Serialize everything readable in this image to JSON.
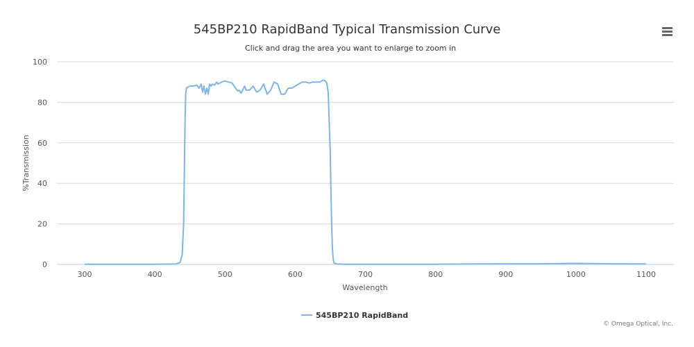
{
  "chart_data": {
    "type": "line",
    "title": "545BP210 RapidBand Typical Transmission Curve",
    "subtitle": "Click and drag the area you want to enlarge to zoom in",
    "xlabel": "Wavelength",
    "ylabel": "%Transmission",
    "xlim": [
      300,
      1100
    ],
    "ylim": [
      0,
      100
    ],
    "xticks": [
      300,
      400,
      500,
      600,
      700,
      800,
      900,
      1000,
      1100
    ],
    "yticks": [
      0,
      20,
      40,
      60,
      80,
      100
    ],
    "grid": true,
    "legend_position": "bottom-center",
    "series": [
      {
        "name": "545BP210 RapidBand",
        "color": "#7cb5ec",
        "x": [
          300,
          350,
          400,
          430,
          436,
          439,
          441,
          442,
          443,
          444,
          445,
          447,
          450,
          455,
          460,
          463,
          466,
          468,
          470,
          472,
          474,
          476,
          478,
          480,
          482,
          485,
          488,
          490,
          495,
          500,
          505,
          510,
          515,
          518,
          520,
          523,
          525,
          528,
          530,
          535,
          540,
          545,
          550,
          555,
          560,
          565,
          570,
          575,
          580,
          585,
          590,
          595,
          600,
          605,
          610,
          615,
          620,
          625,
          630,
          635,
          640,
          643,
          645,
          647,
          648,
          650,
          651,
          652,
          653,
          654,
          655,
          656,
          660,
          670,
          700,
          800,
          850,
          900,
          950,
          1000,
          1050,
          1100
        ],
        "y": [
          0.1,
          0.1,
          0.1,
          0.2,
          1,
          5,
          20,
          45,
          70,
          84,
          87,
          87.5,
          88,
          88,
          88.5,
          87,
          89,
          85,
          88,
          84,
          87,
          84,
          89,
          88,
          89,
          88.5,
          90,
          89,
          90,
          90.5,
          90,
          89.5,
          87,
          85.5,
          86,
          84.5,
          86,
          88,
          86,
          86,
          88,
          85,
          86,
          89,
          84,
          86,
          90,
          89,
          84,
          84,
          87,
          87,
          88,
          89,
          90,
          90,
          89.5,
          90,
          90,
          90,
          91,
          90.5,
          89.5,
          85,
          75,
          55,
          35,
          18,
          8,
          3,
          1,
          0.5,
          0.2,
          0.1,
          0.1,
          0.1,
          0.2,
          0.3,
          0.3,
          0.5,
          0.3,
          0.2
        ]
      }
    ]
  },
  "menu_icon": "hamburger-menu-icon",
  "credits": "© Omega Optical, Inc."
}
